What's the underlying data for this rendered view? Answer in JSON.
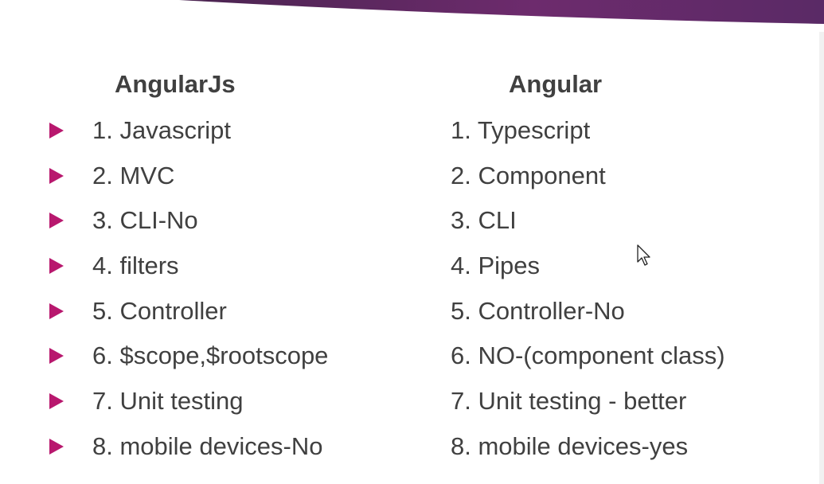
{
  "slide": {
    "accent_color": "#b8186e",
    "banner_color": "#6a2a6c",
    "left_column": {
      "heading": "AngularJs",
      "items": [
        "1. Javascript",
        "2. MVC",
        "3. CLI-No",
        "4. filters",
        "5. Controller",
        "6. $scope,$rootscope",
        "7. Unit testing",
        "8. mobile devices-No"
      ]
    },
    "right_column": {
      "heading": "Angular",
      "items": [
        "1. Typescript",
        "2. Component",
        "3. CLI",
        "4. Pipes",
        "5. Controller-No",
        "6. NO-(component class)",
        "7. Unit testing - better",
        "8. mobile devices-yes"
      ]
    },
    "cursor_icon": "mouse-pointer-icon"
  }
}
